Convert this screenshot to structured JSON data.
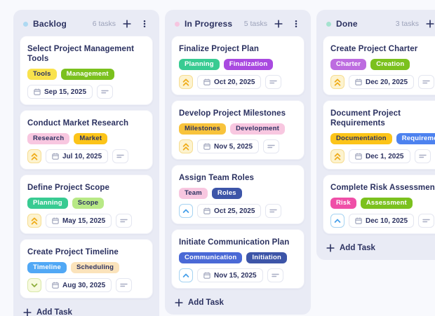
{
  "board": {
    "add_task_label": "Add Task",
    "priority_styles": {
      "high": {
        "bg": "#fdf3cf",
        "border": "#f6dd92",
        "icon_color": "#efac1a",
        "glyph": "chevrons-up-icon"
      },
      "medium": {
        "bg": "#ffffff",
        "border": "#a6d3f2",
        "icon_color": "#48a0ea",
        "glyph": "chevron-up-icon"
      },
      "low": {
        "bg": "#f7fadf",
        "border": "#d9e8a8",
        "icon_color": "#8fae3e",
        "glyph": "chevron-down-icon"
      }
    },
    "columns": [
      {
        "name": "Backlog",
        "dot_color": "#aed9f2",
        "count": "6 tasks",
        "cards": [
          {
            "title": "Select Project Management Tools",
            "tags": [
              {
                "label": "Tools",
                "bg": "#f9e24c",
                "fg": "#2b3160"
              },
              {
                "label": "Management",
                "bg": "#7bc11e",
                "fg": "#ffffff"
              }
            ],
            "priority": null,
            "date": "Sep 15, 2025"
          },
          {
            "title": "Conduct Market Research",
            "tags": [
              {
                "label": "Research",
                "bg": "#f8c7e0",
                "fg": "#2b3160"
              },
              {
                "label": "Market",
                "bg": "#fcc419",
                "fg": "#2b3160"
              }
            ],
            "priority": "high",
            "date": "Jul 10, 2025"
          },
          {
            "title": "Define Project Scope",
            "tags": [
              {
                "label": "Planning",
                "bg": "#38cb92",
                "fg": "#ffffff"
              },
              {
                "label": "Scope",
                "bg": "#b8e986",
                "fg": "#2b3160"
              }
            ],
            "priority": "high",
            "date": "May 15, 2025"
          },
          {
            "title": "Create Project Timeline",
            "tags": [
              {
                "label": "Timeline",
                "bg": "#51a8f5",
                "fg": "#ffffff"
              },
              {
                "label": "Scheduling",
                "bg": "#fbe3bb",
                "fg": "#2b3160"
              }
            ],
            "priority": "low",
            "date": "Aug 30, 2025"
          }
        ]
      },
      {
        "name": "In Progress",
        "dot_color": "#f7c5e0",
        "count": "5 tasks",
        "cards": [
          {
            "title": "Finalize Project Plan",
            "tags": [
              {
                "label": "Planning",
                "bg": "#38cb92",
                "fg": "#ffffff"
              },
              {
                "label": "Finalization",
                "bg": "#a94ae0",
                "fg": "#ffffff"
              }
            ],
            "priority": "high",
            "date": "Oct 20, 2025"
          },
          {
            "title": "Develop Project Milestones",
            "tags": [
              {
                "label": "Milestones",
                "bg": "#f8c33c",
                "fg": "#2b3160"
              },
              {
                "label": "Development",
                "bg": "#f8c7e0",
                "fg": "#2b3160"
              }
            ],
            "priority": "high",
            "date": "Nov 5, 2025"
          },
          {
            "title": "Assign Team Roles",
            "tags": [
              {
                "label": "Team",
                "bg": "#f8c7e0",
                "fg": "#2b3160"
              },
              {
                "label": "Roles",
                "bg": "#3d55a8",
                "fg": "#ffffff"
              }
            ],
            "priority": "medium",
            "date": "Oct 25, 2025"
          },
          {
            "title": "Initiate Communication Plan",
            "tags": [
              {
                "label": "Communication",
                "bg": "#4a69d6",
                "fg": "#ffffff"
              },
              {
                "label": "Initiation",
                "bg": "#3d55a8",
                "fg": "#ffffff"
              }
            ],
            "priority": "medium",
            "date": "Nov 15, 2025"
          }
        ]
      },
      {
        "name": "Done",
        "dot_color": "#a5e3cf",
        "count": "3 tasks",
        "cards": [
          {
            "title": "Create Project Charter",
            "tags": [
              {
                "label": "Charter",
                "bg": "#bd6ce0",
                "fg": "#ffffff"
              },
              {
                "label": "Creation",
                "bg": "#7bc11e",
                "fg": "#ffffff"
              }
            ],
            "priority": "high",
            "date": "Dec 20, 2025"
          },
          {
            "title": "Document Project Requirements",
            "tags": [
              {
                "label": "Documentation",
                "bg": "#fcc419",
                "fg": "#2b3160"
              },
              {
                "label": "Requirements",
                "bg": "#4d82ef",
                "fg": "#ffffff"
              }
            ],
            "priority": "high",
            "date": "Dec 1, 2025"
          },
          {
            "title": "Complete Risk Assessment",
            "tags": [
              {
                "label": "Risk",
                "bg": "#ef4fa7",
                "fg": "#ffffff"
              },
              {
                "label": "Assessment",
                "bg": "#7bc11e",
                "fg": "#ffffff"
              }
            ],
            "priority": "medium",
            "date": "Dec 10, 2025"
          }
        ]
      }
    ]
  }
}
